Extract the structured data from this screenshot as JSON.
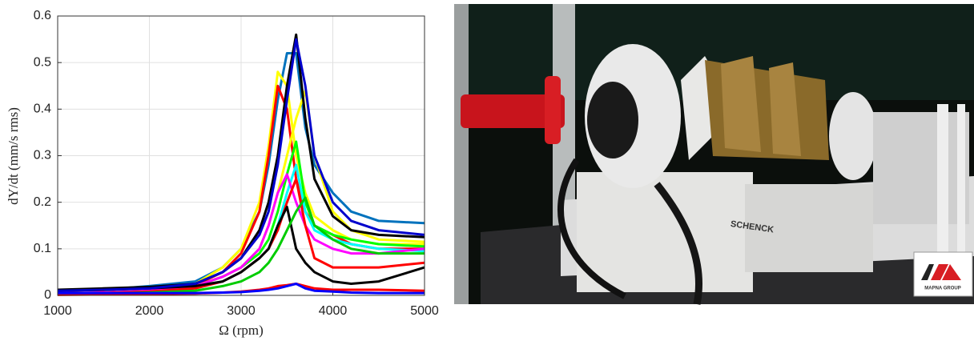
{
  "chart_data": {
    "type": "line",
    "xlabel": "Ω (rpm)",
    "ylabel": "dY/dt (mm/s rms)",
    "x": [
      1000,
      1500,
      2000,
      2500,
      2800,
      3000,
      3200,
      3300,
      3400,
      3500,
      3600,
      3700,
      3800,
      4000,
      4200,
      4500,
      5000
    ],
    "xlim": [
      1000,
      5000
    ],
    "xticks": [
      1000,
      2000,
      3000,
      4000,
      5000
    ],
    "ylim": [
      0,
      0.6
    ],
    "yticks": [
      0,
      0.1,
      0.2,
      0.3,
      0.4,
      0.5,
      0.6
    ],
    "grid": true,
    "series": [
      {
        "color": "#0072bd",
        "values": [
          0.01,
          0.012,
          0.02,
          0.03,
          0.06,
          0.1,
          0.18,
          0.28,
          0.42,
          0.52,
          0.52,
          0.36,
          0.28,
          0.22,
          0.18,
          0.16,
          0.155
        ]
      },
      {
        "color": "#ffff00",
        "values": [
          0.005,
          0.008,
          0.012,
          0.025,
          0.06,
          0.1,
          0.2,
          0.32,
          0.48,
          0.45,
          0.3,
          0.22,
          0.17,
          0.14,
          0.12,
          0.11,
          0.11
        ]
      },
      {
        "color": "#ff0000",
        "values": [
          0.005,
          0.008,
          0.012,
          0.022,
          0.05,
          0.09,
          0.18,
          0.3,
          0.45,
          0.4,
          0.25,
          0.18,
          0.15,
          0.13,
          0.11,
          0.1,
          0.1
        ]
      },
      {
        "color": "#ffff00",
        "values": [
          0.005,
          0.006,
          0.01,
          0.02,
          0.04,
          0.06,
          0.1,
          0.15,
          0.22,
          0.3,
          0.38,
          0.44,
          0.3,
          0.18,
          0.14,
          0.12,
          0.115
        ]
      },
      {
        "color": "#00ff00",
        "values": [
          0.005,
          0.006,
          0.01,
          0.02,
          0.04,
          0.06,
          0.09,
          0.12,
          0.18,
          0.26,
          0.33,
          0.2,
          0.15,
          0.13,
          0.12,
          0.11,
          0.105
        ]
      },
      {
        "color": "#00ffff",
        "values": [
          0.005,
          0.006,
          0.01,
          0.02,
          0.03,
          0.05,
          0.08,
          0.1,
          0.15,
          0.22,
          0.28,
          0.18,
          0.14,
          0.12,
          0.11,
          0.1,
          0.095
        ]
      },
      {
        "color": "#ff00ff",
        "values": [
          0.005,
          0.006,
          0.01,
          0.02,
          0.04,
          0.06,
          0.1,
          0.15,
          0.22,
          0.26,
          0.2,
          0.15,
          0.12,
          0.1,
          0.09,
          0.09,
          0.1
        ]
      },
      {
        "color": "#ff0000",
        "values": [
          0.003,
          0.005,
          0.008,
          0.015,
          0.03,
          0.05,
          0.08,
          0.1,
          0.14,
          0.2,
          0.25,
          0.15,
          0.08,
          0.06,
          0.06,
          0.06,
          0.07
        ]
      },
      {
        "color": "#000000",
        "values": [
          0.01,
          0.012,
          0.015,
          0.02,
          0.03,
          0.05,
          0.08,
          0.1,
          0.15,
          0.19,
          0.1,
          0.07,
          0.05,
          0.03,
          0.025,
          0.03,
          0.06
        ]
      },
      {
        "color": "#00cc00",
        "values": [
          0.003,
          0.004,
          0.006,
          0.01,
          0.02,
          0.03,
          0.05,
          0.07,
          0.1,
          0.14,
          0.18,
          0.21,
          0.15,
          0.12,
          0.1,
          0.09,
          0.09
        ]
      },
      {
        "color": "#ff0000",
        "values": [
          0.001,
          0.002,
          0.003,
          0.004,
          0.006,
          0.008,
          0.012,
          0.015,
          0.02,
          0.022,
          0.025,
          0.02,
          0.015,
          0.012,
          0.012,
          0.012,
          0.01
        ]
      },
      {
        "color": "#0000ff",
        "values": [
          0.005,
          0.005,
          0.005,
          0.005,
          0.006,
          0.007,
          0.01,
          0.012,
          0.015,
          0.02,
          0.025,
          0.015,
          0.01,
          0.008,
          0.006,
          0.005,
          0.005
        ]
      },
      {
        "color": "#000000",
        "values": [
          0.012,
          0.015,
          0.018,
          0.025,
          0.05,
          0.08,
          0.14,
          0.2,
          0.3,
          0.45,
          0.56,
          0.38,
          0.25,
          0.17,
          0.14,
          0.13,
          0.125
        ]
      },
      {
        "color": "#0000cc",
        "values": [
          0.01,
          0.012,
          0.015,
          0.025,
          0.05,
          0.08,
          0.13,
          0.18,
          0.28,
          0.42,
          0.55,
          0.45,
          0.3,
          0.2,
          0.16,
          0.14,
          0.13
        ]
      }
    ]
  },
  "photo": {
    "machine_label": "SCHENCK",
    "logo_text": "MAPNA GROUP"
  }
}
